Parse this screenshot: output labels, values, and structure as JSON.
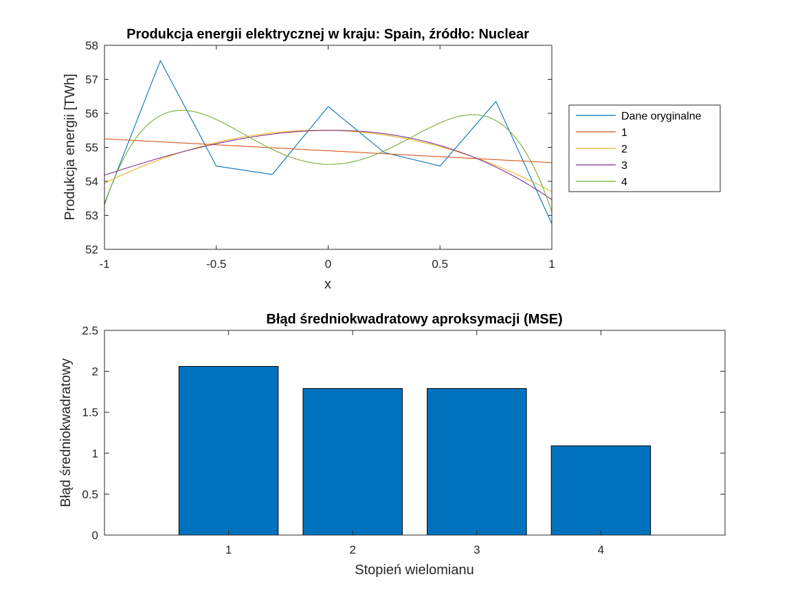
{
  "chart_data": [
    {
      "type": "line",
      "title": "Produkcja energii elektrycznej w kraju: Spain, źródło: Nuclear",
      "xlabel": "x",
      "ylabel": "Produkcja energii [TWh]",
      "xlim": [
        -1,
        1
      ],
      "ylim": [
        52,
        58
      ],
      "xticks": [
        -1,
        -0.5,
        0,
        0.5,
        1
      ],
      "xtick_labels": [
        "-1",
        "-0.5",
        "0",
        "0.5",
        "1"
      ],
      "yticks": [
        52,
        53,
        54,
        55,
        56,
        57,
        58
      ],
      "ytick_labels": [
        "52",
        "53",
        "54",
        "55",
        "56",
        "57",
        "58"
      ],
      "legend_position": "outside-right",
      "series": [
        {
          "name": "Dane oryginalne",
          "color": "#0072BD",
          "x": [
            -1,
            -0.75,
            -0.5,
            -0.25,
            0,
            0.25,
            0.5,
            0.75,
            1
          ],
          "y": [
            53.35,
            57.55,
            54.45,
            54.2,
            56.2,
            54.85,
            54.45,
            56.35,
            52.75
          ]
        },
        {
          "name": "1",
          "color": "#D95319",
          "poly": [
            54.9,
            -0.35
          ]
        },
        {
          "name": "2",
          "color": "#EDB120",
          "poly": [
            55.5,
            -0.12,
            -1.68
          ]
        },
        {
          "name": "3",
          "color": "#7E2F8E",
          "poly": [
            55.5,
            0.05,
            -1.68,
            -0.41
          ]
        },
        {
          "name": "4",
          "color": "#77AC30",
          "poly": [
            54.5,
            -0.1,
            7.2,
            0,
            -8.5
          ]
        }
      ]
    },
    {
      "type": "bar",
      "title": "Błąd średniokwadratowy aproksymacji (MSE)",
      "xlabel": "Stopień wielomianu",
      "ylabel": "Błąd średniokwadratowy",
      "xlim": [
        0,
        5
      ],
      "ylim": [
        0,
        2.5
      ],
      "categories": [
        "1",
        "2",
        "3",
        "4"
      ],
      "values": [
        2.06,
        1.79,
        1.79,
        1.09
      ],
      "yticks": [
        0,
        0.5,
        1,
        1.5,
        2,
        2.5
      ],
      "ytick_labels": [
        "0",
        "0.5",
        "1",
        "1.5",
        "2",
        "2.5"
      ],
      "bar_color": "#0072BD"
    }
  ]
}
